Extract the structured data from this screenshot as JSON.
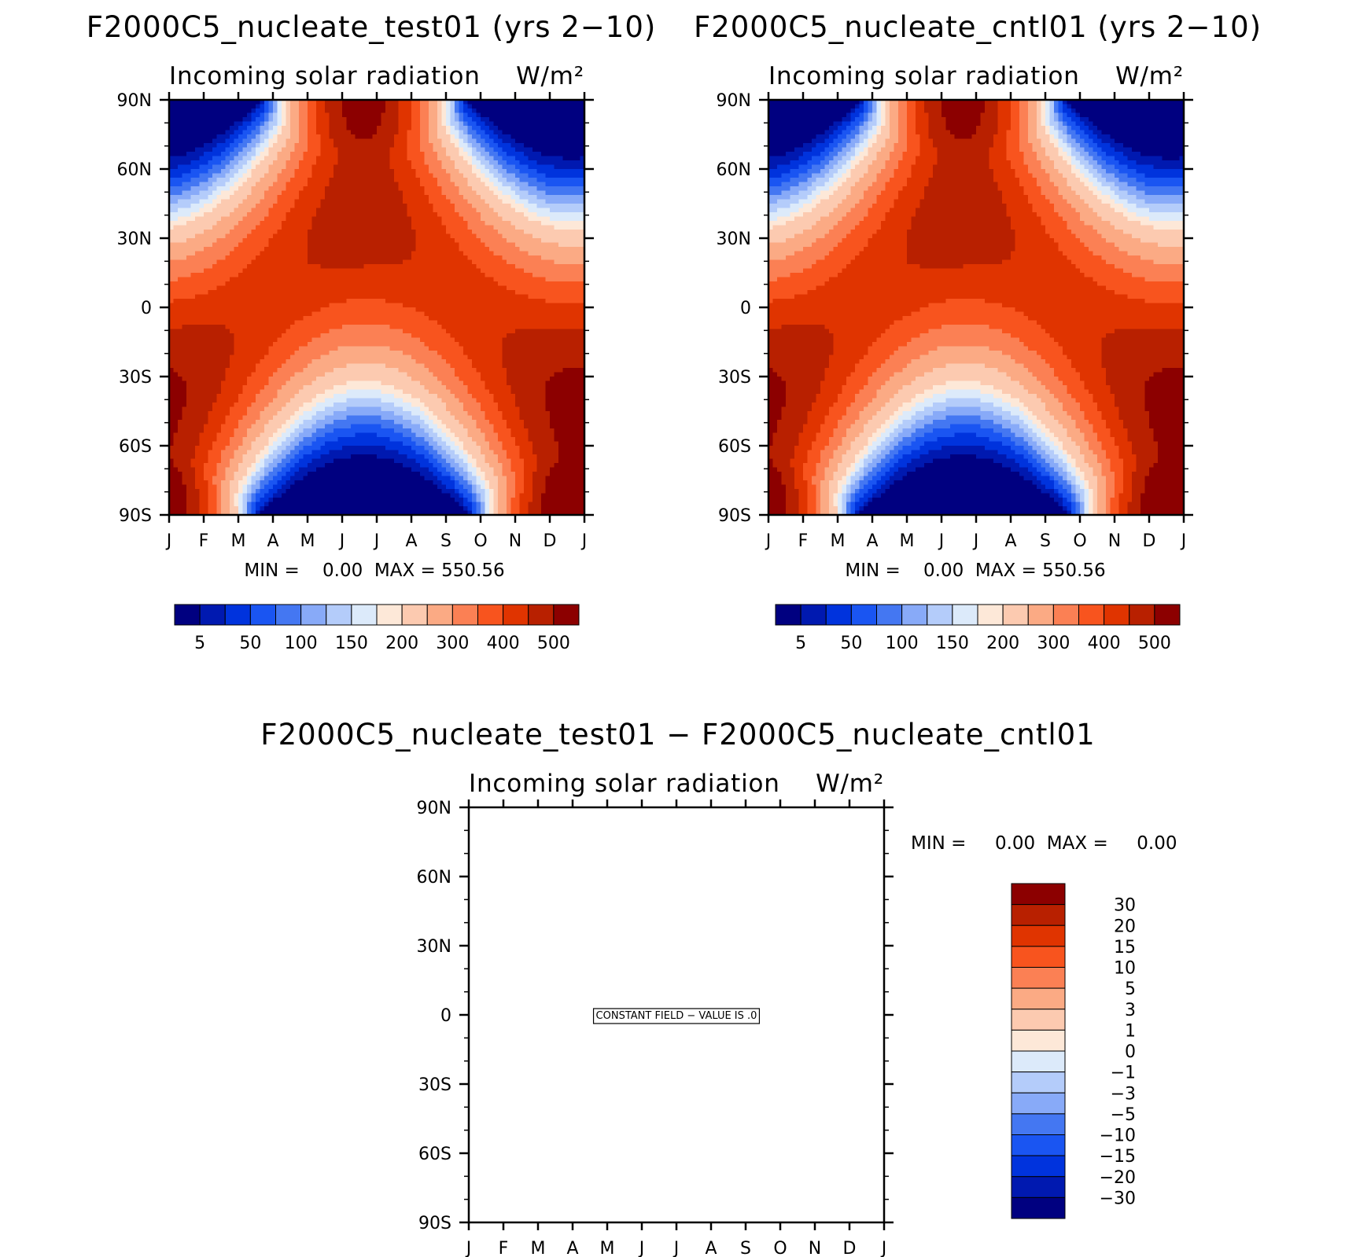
{
  "chart_data": [
    {
      "type": "heatmap",
      "title": "F2000C5_nucleate_test01 (yrs 2−10)",
      "subtitle": "Incoming solar radiation",
      "units": "W/m²",
      "x_ticks": [
        "J",
        "F",
        "M",
        "A",
        "M",
        "J",
        "J",
        "A",
        "S",
        "O",
        "N",
        "D",
        "J"
      ],
      "y_ticks": [
        "90N",
        "60N",
        "30N",
        "0",
        "30S",
        "60S",
        "90S"
      ],
      "ylim": [
        -90,
        90
      ],
      "stats_text": "MIN =    0.00  MAX = 550.56",
      "min": 0.0,
      "max": 550.56,
      "colorbar_labels": [
        "5",
        "50",
        "100",
        "150",
        "200",
        "300",
        "400",
        "500"
      ],
      "colorbar_colors": [
        "#000080",
        "#0019b0",
        "#0033dd",
        "#1a55f2",
        "#4477f2",
        "#88aaf8",
        "#b4ccfa",
        "#dceafa",
        "#fde8d8",
        "#fccab0",
        "#fbaa84",
        "#fb8054",
        "#f8541e",
        "#e03400",
        "#b82000",
        "#8c0000"
      ]
    },
    {
      "type": "heatmap",
      "title": "F2000C5_nucleate_cntl01 (yrs 2−10)",
      "subtitle": "Incoming solar radiation",
      "units": "W/m²",
      "x_ticks": [
        "J",
        "F",
        "M",
        "A",
        "M",
        "J",
        "J",
        "A",
        "S",
        "O",
        "N",
        "D",
        "J"
      ],
      "y_ticks": [
        "90N",
        "60N",
        "30N",
        "0",
        "30S",
        "60S",
        "90S"
      ],
      "ylim": [
        -90,
        90
      ],
      "stats_text": "MIN =    0.00  MAX = 550.56",
      "min": 0.0,
      "max": 550.56,
      "colorbar_labels": [
        "5",
        "50",
        "100",
        "150",
        "200",
        "300",
        "400",
        "500"
      ],
      "colorbar_colors": [
        "#000080",
        "#0019b0",
        "#0033dd",
        "#1a55f2",
        "#4477f2",
        "#88aaf8",
        "#b4ccfa",
        "#dceafa",
        "#fde8d8",
        "#fccab0",
        "#fbaa84",
        "#fb8054",
        "#f8541e",
        "#e03400",
        "#b82000",
        "#8c0000"
      ]
    },
    {
      "type": "heatmap",
      "title": "F2000C5_nucleate_test01 − F2000C5_nucleate_cntl01",
      "subtitle": "Incoming solar radiation",
      "units": "W/m²",
      "x_ticks": [
        "J",
        "F",
        "M",
        "A",
        "M",
        "J",
        "J",
        "A",
        "S",
        "O",
        "N",
        "D",
        "J"
      ],
      "y_ticks": [
        "90N",
        "60N",
        "30N",
        "0",
        "30S",
        "60S",
        "90S"
      ],
      "ylim": [
        -90,
        90
      ],
      "stats_text": "MIN =     0.00  MAX =     0.00",
      "min": 0.0,
      "max": 0.0,
      "constant_field_text": "CONSTANT FIELD − VALUE IS .0",
      "colorbar_labels": [
        "30",
        "20",
        "15",
        "10",
        "5",
        "3",
        "1",
        "0",
        "−1",
        "−3",
        "−5",
        "−10",
        "−15",
        "−20",
        "−30"
      ],
      "colorbar_colors": [
        "#8c0000",
        "#b82000",
        "#e03400",
        "#f8541e",
        "#fb8054",
        "#fbaa84",
        "#fccab0",
        "#fde8d8",
        "#dceafa",
        "#b4ccfa",
        "#88aaf8",
        "#4477f2",
        "#1a55f2",
        "#0033dd",
        "#0019b0",
        "#000080"
      ]
    }
  ]
}
